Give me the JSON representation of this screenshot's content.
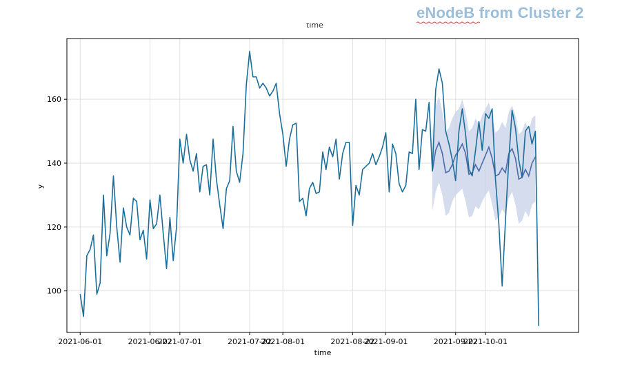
{
  "header": {
    "title": "eNodeB from Cluster 2"
  },
  "chart_data": {
    "type": "line",
    "title": "time",
    "xlabel": "time",
    "ylabel": "y",
    "ylim": [
      87,
      179
    ],
    "yticks": [
      100,
      120,
      140,
      160
    ],
    "xlim": [
      "2021-05-28",
      "2021-10-29"
    ],
    "xticks": [
      {
        "date": "2021-06-01",
        "label": "2021-06-01"
      },
      {
        "date": "2021-06-22",
        "label": "2021-06-22"
      },
      {
        "date": "2021-07-01",
        "label": "2021-07-01"
      },
      {
        "date": "2021-07-22",
        "label": "2021-07-22"
      },
      {
        "date": "2021-08-01",
        "label": "2021-08-01"
      },
      {
        "date": "2021-08-22",
        "label": "2021-08-22"
      },
      {
        "date": "2021-09-01",
        "label": "2021-09-01"
      },
      {
        "date": "2021-09-22",
        "label": "2021-09-22"
      },
      {
        "date": "2021-10-01",
        "label": "2021-10-01"
      }
    ],
    "grid": true,
    "colors": {
      "actual": "#1a6e9a",
      "forecast": "#4a6aaa",
      "band": "#c9d3e8",
      "grid": "#e0e0e0",
      "header": "#9bbfd9"
    },
    "series": [
      {
        "values": [
          [
            "2021-06-01",
            99
          ],
          [
            "2021-06-02",
            92
          ],
          [
            "2021-06-03",
            111
          ],
          [
            "2021-06-04",
            113
          ],
          [
            "2021-06-05",
            117.5
          ],
          [
            "2021-06-06",
            99
          ],
          [
            "2021-06-07",
            102.5
          ],
          [
            "2021-06-08",
            130
          ],
          [
            "2021-06-09",
            111
          ],
          [
            "2021-06-10",
            118
          ],
          [
            "2021-06-11",
            136
          ],
          [
            "2021-06-12",
            120
          ],
          [
            "2021-06-13",
            109
          ],
          [
            "2021-06-14",
            126
          ],
          [
            "2021-06-15",
            120
          ],
          [
            "2021-06-16",
            117.5
          ],
          [
            "2021-06-17",
            129
          ],
          [
            "2021-06-18",
            128
          ],
          [
            "2021-06-19",
            116
          ],
          [
            "2021-06-20",
            119
          ],
          [
            "2021-06-21",
            110
          ],
          [
            "2021-06-22",
            128.5
          ],
          [
            "2021-06-23",
            119.5
          ],
          [
            "2021-06-24",
            121
          ],
          [
            "2021-06-25",
            130
          ],
          [
            "2021-06-26",
            118
          ],
          [
            "2021-06-27",
            107
          ],
          [
            "2021-06-28",
            123
          ],
          [
            "2021-06-29",
            109.5
          ],
          [
            "2021-06-30",
            120
          ],
          [
            "2021-07-01",
            147.5
          ],
          [
            "2021-07-02",
            140
          ],
          [
            "2021-07-03",
            149
          ],
          [
            "2021-07-04",
            141
          ],
          [
            "2021-07-05",
            137.5
          ],
          [
            "2021-07-06",
            143
          ],
          [
            "2021-07-07",
            131
          ],
          [
            "2021-07-08",
            139
          ],
          [
            "2021-07-09",
            139.5
          ],
          [
            "2021-07-10",
            130
          ],
          [
            "2021-07-11",
            147.5
          ],
          [
            "2021-07-12",
            135
          ],
          [
            "2021-07-13",
            127
          ],
          [
            "2021-07-14",
            119.5
          ],
          [
            "2021-07-15",
            132
          ],
          [
            "2021-07-16",
            134.5
          ],
          [
            "2021-07-17",
            151.5
          ],
          [
            "2021-07-18",
            137.5
          ],
          [
            "2021-07-19",
            134
          ],
          [
            "2021-07-20",
            143
          ],
          [
            "2021-07-21",
            164.5
          ],
          [
            "2021-07-22",
            175
          ],
          [
            "2021-07-23",
            167
          ],
          [
            "2021-07-24",
            167
          ],
          [
            "2021-07-25",
            163.5
          ],
          [
            "2021-07-26",
            165
          ],
          [
            "2021-07-27",
            163.5
          ],
          [
            "2021-07-28",
            161
          ],
          [
            "2021-07-29",
            162.5
          ],
          [
            "2021-07-30",
            165
          ],
          [
            "2021-07-31",
            155.5
          ],
          [
            "2021-08-01",
            149
          ],
          [
            "2021-08-02",
            139
          ],
          [
            "2021-08-03",
            147.5
          ],
          [
            "2021-08-04",
            152
          ],
          [
            "2021-08-05",
            152.5
          ],
          [
            "2021-08-06",
            128
          ],
          [
            "2021-08-07",
            129
          ],
          [
            "2021-08-08",
            123.5
          ],
          [
            "2021-08-09",
            132
          ],
          [
            "2021-08-10",
            134
          ],
          [
            "2021-08-11",
            130.5
          ],
          [
            "2021-08-12",
            131
          ],
          [
            "2021-08-13",
            143.5
          ],
          [
            "2021-08-14",
            138
          ],
          [
            "2021-08-15",
            145
          ],
          [
            "2021-08-16",
            142
          ],
          [
            "2021-08-17",
            147.5
          ],
          [
            "2021-08-18",
            135
          ],
          [
            "2021-08-19",
            143
          ],
          [
            "2021-08-20",
            146.5
          ],
          [
            "2021-08-21",
            146.5
          ],
          [
            "2021-08-22",
            120.5
          ],
          [
            "2021-08-23",
            133
          ],
          [
            "2021-08-24",
            130
          ],
          [
            "2021-08-25",
            138
          ],
          [
            "2021-08-26",
            139
          ],
          [
            "2021-08-27",
            140
          ],
          [
            "2021-08-28",
            143
          ],
          [
            "2021-08-29",
            139.5
          ],
          [
            "2021-08-30",
            142
          ],
          [
            "2021-08-31",
            145
          ],
          [
            "2021-09-01",
            149.5
          ],
          [
            "2021-09-02",
            131
          ],
          [
            "2021-09-03",
            146
          ],
          [
            "2021-09-04",
            143
          ],
          [
            "2021-09-05",
            133.5
          ],
          [
            "2021-09-06",
            131
          ],
          [
            "2021-09-07",
            133
          ],
          [
            "2021-09-08",
            143.5
          ],
          [
            "2021-09-09",
            143
          ],
          [
            "2021-09-10",
            160
          ],
          [
            "2021-09-11",
            138
          ],
          [
            "2021-09-12",
            150.5
          ],
          [
            "2021-09-13",
            150
          ],
          [
            "2021-09-14",
            159
          ],
          [
            "2021-09-15",
            137.5
          ],
          [
            "2021-09-16",
            163
          ],
          [
            "2021-09-17",
            169.5
          ],
          [
            "2021-09-18",
            165
          ],
          [
            "2021-09-19",
            150
          ],
          [
            "2021-09-20",
            146
          ],
          [
            "2021-09-21",
            141
          ],
          [
            "2021-09-22",
            134.5
          ],
          [
            "2021-09-23",
            150
          ],
          [
            "2021-09-24",
            157
          ],
          [
            "2021-09-25",
            149
          ],
          [
            "2021-09-26",
            138
          ],
          [
            "2021-09-27",
            136
          ],
          [
            "2021-09-28",
            144
          ],
          [
            "2021-09-29",
            153
          ],
          [
            "2021-09-30",
            144
          ],
          [
            "2021-10-01",
            155.5
          ],
          [
            "2021-10-02",
            154
          ],
          [
            "2021-10-03",
            157
          ],
          [
            "2021-10-04",
            135
          ],
          [
            "2021-10-05",
            121
          ],
          [
            "2021-10-06",
            101.5
          ],
          [
            "2021-10-07",
            122
          ],
          [
            "2021-10-08",
            141
          ],
          [
            "2021-10-09",
            156.5
          ],
          [
            "2021-10-10",
            151
          ],
          [
            "2021-10-11",
            141
          ],
          [
            "2021-10-12",
            135.5
          ],
          [
            "2021-10-13",
            150
          ],
          [
            "2021-10-14",
            151.5
          ],
          [
            "2021-10-15",
            146
          ],
          [
            "2021-10-16",
            150
          ],
          [
            "2021-10-17",
            89
          ]
        ]
      },
      {
        "values": [
          [
            "2021-09-15",
            137.5
          ],
          [
            "2021-09-16",
            144
          ],
          [
            "2021-09-17",
            146.5
          ],
          [
            "2021-09-18",
            143
          ],
          [
            "2021-09-19",
            137
          ],
          [
            "2021-09-20",
            137.5
          ],
          [
            "2021-09-21",
            139.5
          ],
          [
            "2021-09-22",
            142.5
          ],
          [
            "2021-09-23",
            144
          ],
          [
            "2021-09-24",
            146
          ],
          [
            "2021-09-25",
            143
          ],
          [
            "2021-09-26",
            136.5
          ],
          [
            "2021-09-27",
            137
          ],
          [
            "2021-09-28",
            139.5
          ],
          [
            "2021-09-29",
            137.5
          ],
          [
            "2021-09-30",
            140
          ],
          [
            "2021-10-01",
            142.5
          ],
          [
            "2021-10-02",
            145
          ],
          [
            "2021-10-03",
            141.5
          ],
          [
            "2021-10-04",
            136
          ],
          [
            "2021-10-05",
            136.5
          ],
          [
            "2021-10-06",
            138.5
          ],
          [
            "2021-10-07",
            137
          ],
          [
            "2021-10-08",
            143
          ],
          [
            "2021-10-09",
            144.5
          ],
          [
            "2021-10-10",
            141.5
          ],
          [
            "2021-10-11",
            135
          ],
          [
            "2021-10-12",
            135.5
          ],
          [
            "2021-10-13",
            138
          ],
          [
            "2021-10-14",
            136
          ],
          [
            "2021-10-15",
            140
          ],
          [
            "2021-10-16",
            142
          ]
        ]
      }
    ],
    "band": {
      "lower": [
        125,
        131,
        134,
        130,
        123.5,
        124.5,
        128,
        130,
        131,
        132,
        128,
        123,
        123.5,
        126.5,
        125.5,
        128,
        130,
        131.5,
        127,
        122,
        123,
        125.5,
        124,
        129,
        131,
        127,
        121,
        122,
        125,
        123,
        127,
        128
      ],
      "upper": [
        150,
        158,
        161,
        156,
        150,
        151,
        154,
        156,
        157,
        160,
        156,
        150,
        151,
        154,
        152,
        155,
        157,
        159,
        155,
        149.5,
        150.5,
        153,
        151,
        156,
        158,
        155,
        149,
        150,
        153,
        150,
        154,
        155
      ]
    }
  }
}
